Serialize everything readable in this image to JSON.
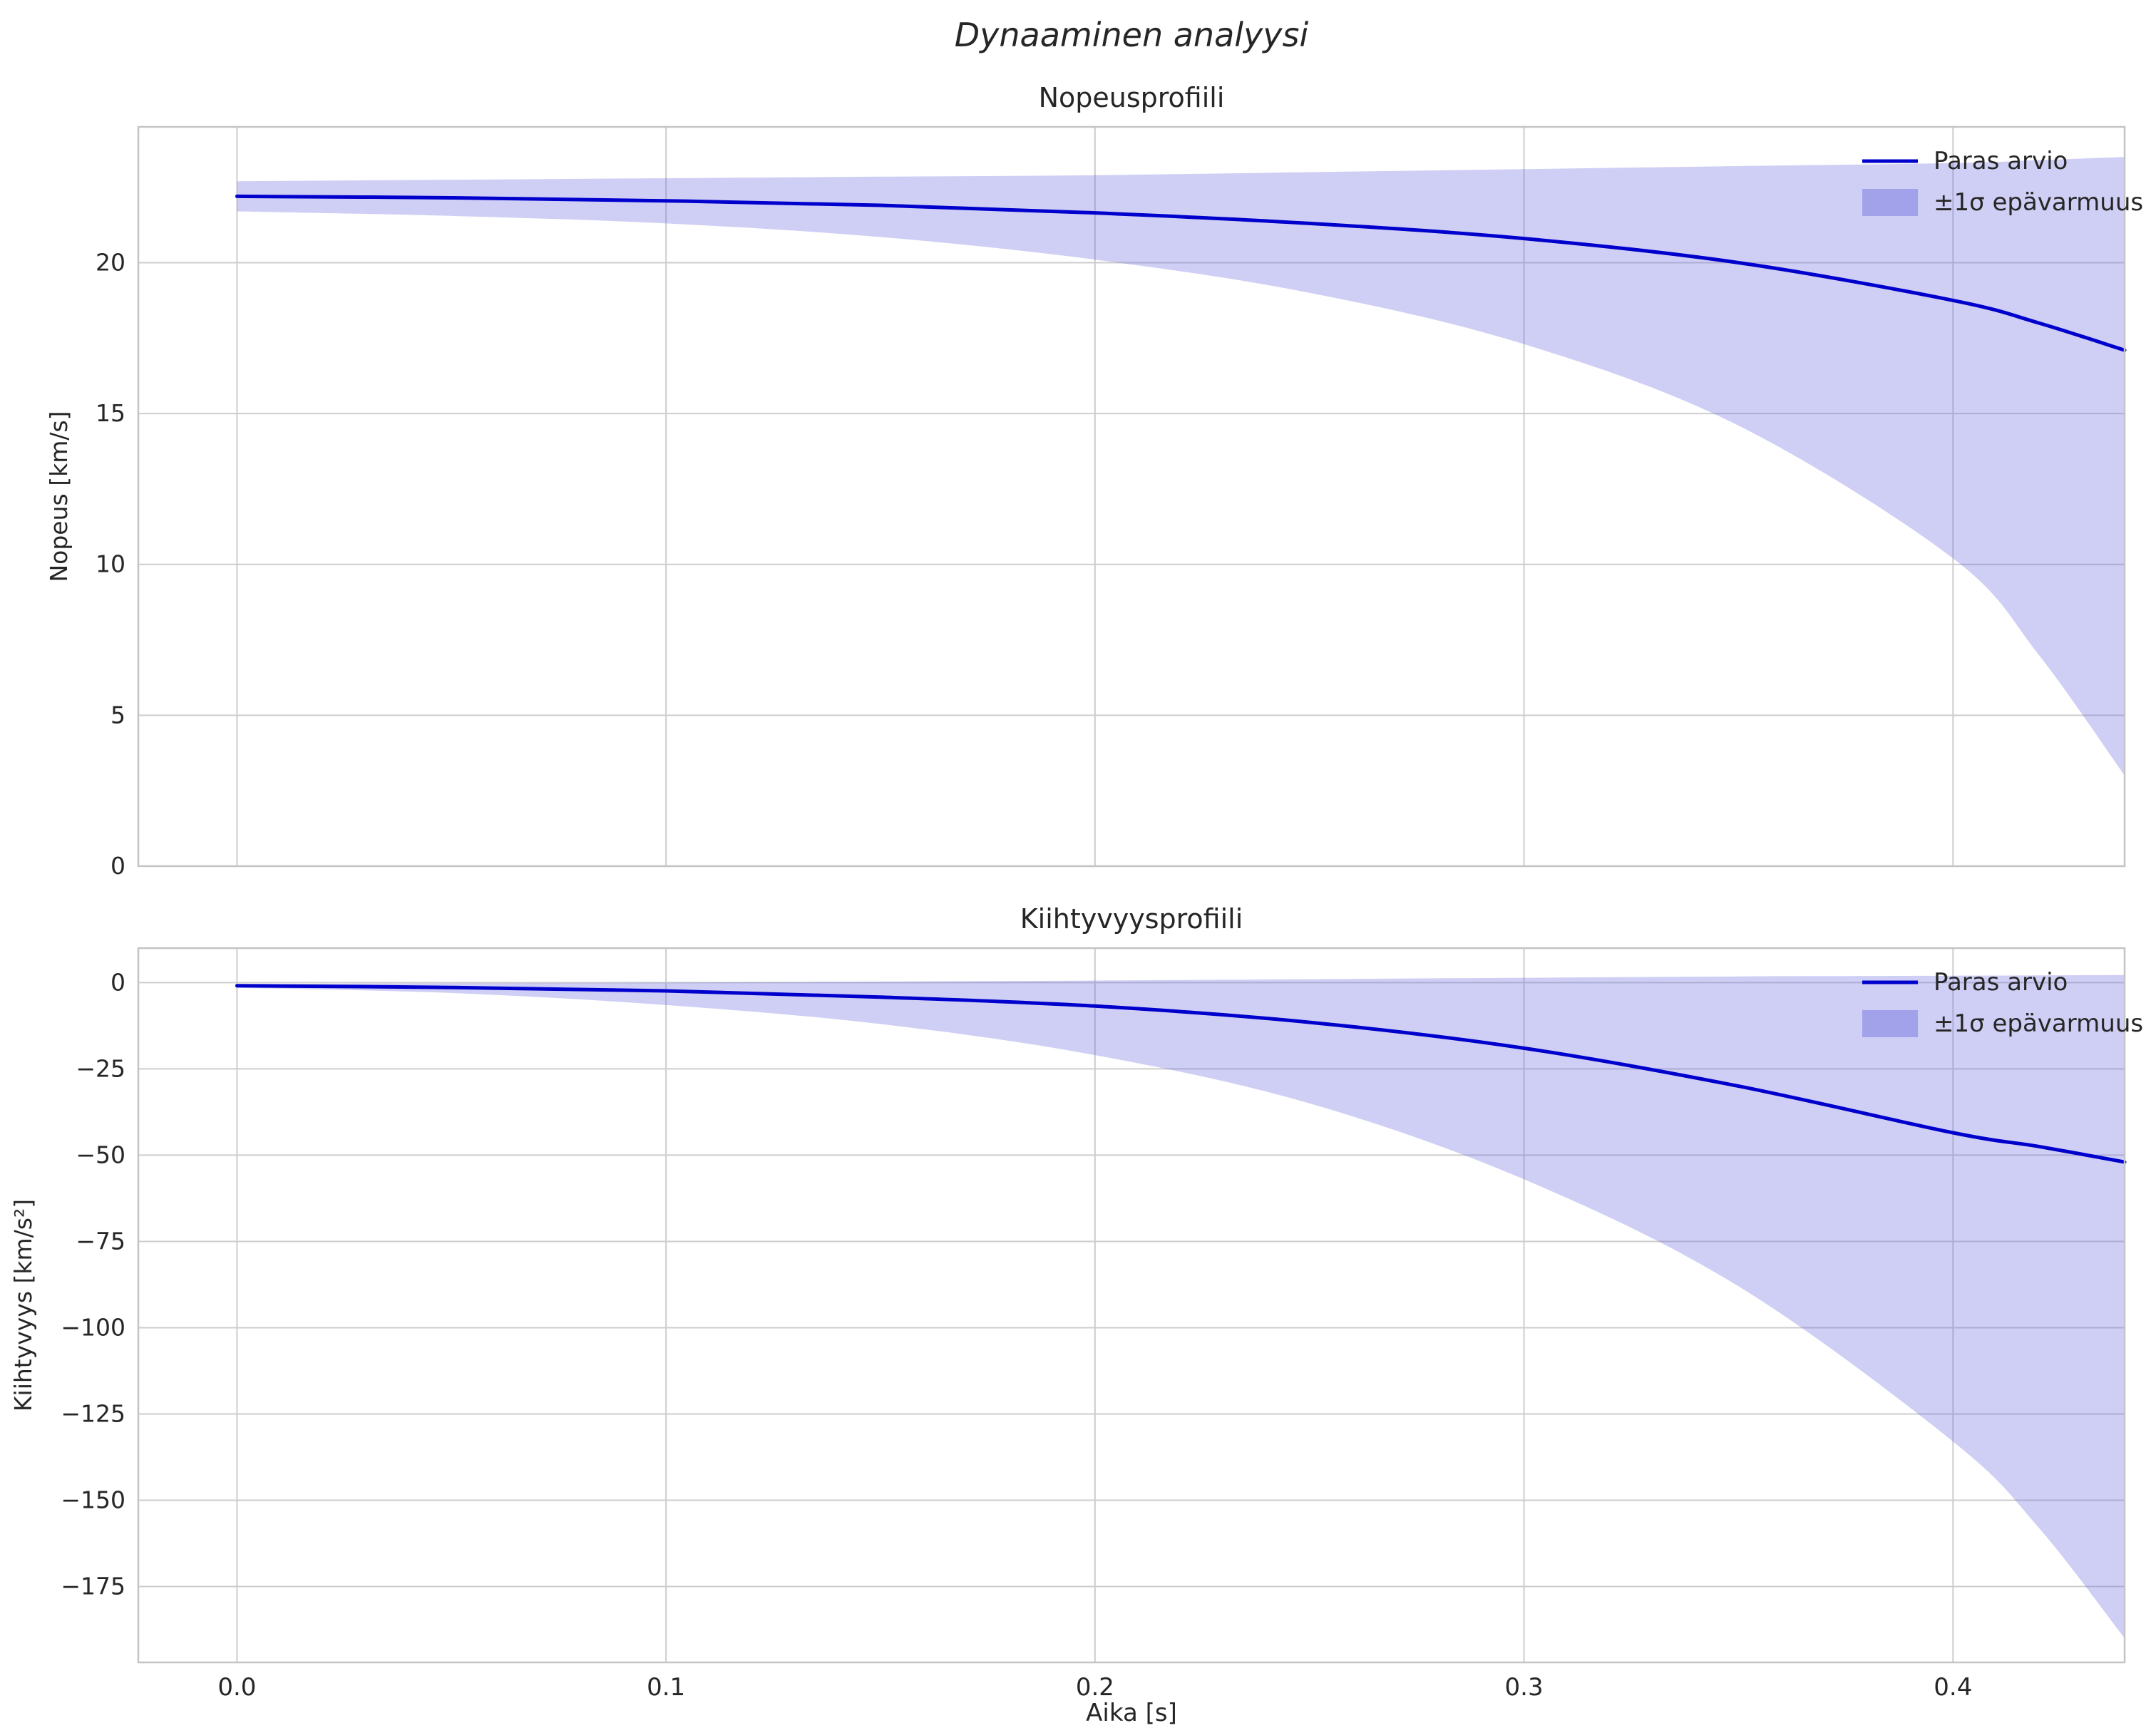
{
  "figure": {
    "title": "Dynaaminen analyysi",
    "background": "#ffffff",
    "text_color": "#262626",
    "grid_color": "#cdcdcd",
    "spine_color": "#c4c4c4",
    "line_color": "#0000cd",
    "band_fill": "#6a6ae0",
    "band_opacity": 0.32
  },
  "chart_data": [
    {
      "type": "line",
      "title": "Nopeusprofiili",
      "xlabel": "",
      "ylabel": "Nopeus [km/s]",
      "xlim": [
        -0.023,
        0.44
      ],
      "ylim": [
        0,
        24.5
      ],
      "xticks": [
        0.0,
        0.1,
        0.2,
        0.3,
        0.4
      ],
      "xtick_labels": [],
      "yticks": [
        0,
        5,
        10,
        15,
        20
      ],
      "ytick_labels": [
        "0",
        "5",
        "10",
        "15",
        "20"
      ],
      "x": [
        0,
        0.05,
        0.1,
        0.15,
        0.2,
        0.25,
        0.3,
        0.35,
        0.4,
        0.42,
        0.44
      ],
      "series": [
        {
          "name": "Paras arvio",
          "values": [
            22.2,
            22.15,
            22.05,
            21.9,
            21.65,
            21.3,
            20.8,
            20.0,
            18.75,
            18.0,
            17.1
          ]
        }
      ],
      "band": {
        "name": "±1σ epävarmuus",
        "upper": [
          22.7,
          22.75,
          22.8,
          22.85,
          22.9,
          23.0,
          23.1,
          23.2,
          23.3,
          23.4,
          23.5
        ],
        "lower": [
          21.7,
          21.55,
          21.3,
          20.85,
          20.1,
          19.0,
          17.3,
          14.6,
          10.2,
          7.0,
          3.0
        ]
      },
      "legend": [
        "Paras arvio",
        "±1σ epävarmuus"
      ],
      "legend_position": "upper right",
      "grid": true
    },
    {
      "type": "line",
      "title": "Kiihtyvyysprofiili",
      "xlabel": "Aika [s]",
      "ylabel": "Kiihtyvyys [km/s²]",
      "xlim": [
        -0.023,
        0.44
      ],
      "ylim": [
        -197,
        10
      ],
      "xticks": [
        0.0,
        0.1,
        0.2,
        0.3,
        0.4
      ],
      "xtick_labels": [
        "0.0",
        "0.1",
        "0.2",
        "0.3",
        "0.4"
      ],
      "yticks": [
        0,
        -25,
        -50,
        -75,
        -100,
        -125,
        -150,
        -175
      ],
      "ytick_labels": [
        "0",
        "−25",
        "−50",
        "−75",
        "−100",
        "−125",
        "−150",
        "−175"
      ],
      "x": [
        0,
        0.05,
        0.1,
        0.15,
        0.2,
        0.25,
        0.3,
        0.35,
        0.4,
        0.42,
        0.44
      ],
      "series": [
        {
          "name": "Paras arvio",
          "values": [
            -0.9,
            -1.4,
            -2.4,
            -4.2,
            -6.8,
            -11.5,
            -19,
            -30,
            -43.5,
            -47.5,
            -52
          ]
        }
      ],
      "band": {
        "name": "±1σ epävarmuus",
        "upper": [
          -0.4,
          -0.2,
          0.0,
          0.3,
          0.6,
          1.0,
          1.4,
          1.8,
          2.0,
          2.1,
          2.2
        ],
        "lower": [
          -1.5,
          -3.0,
          -6.5,
          -12,
          -21,
          -35,
          -57,
          -88,
          -133,
          -158,
          -190
        ]
      },
      "legend": [
        "Paras arvio",
        "±1σ epävarmuus"
      ],
      "legend_position": "upper right",
      "grid": true
    }
  ]
}
